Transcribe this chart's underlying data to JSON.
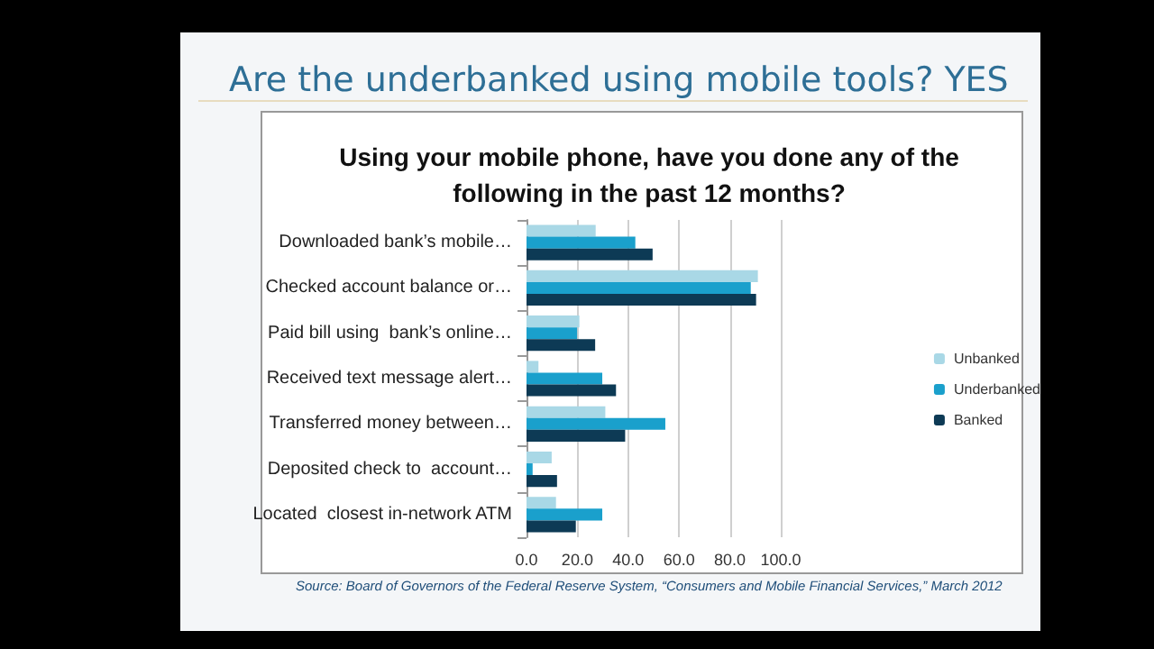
{
  "chart_data": {
    "type": "bar",
    "orientation": "horizontal",
    "title": "Are the underbanked using mobile tools? YES",
    "subtitle": "Using your mobile phone, have you done any of the\nfollowing in the past 12 months?",
    "categories": [
      "Downloaded bank’s mobile…",
      "Checked account balance or…",
      "Paid bill using  bank’s online…",
      "Received text message alert…",
      "Transferred money between…",
      "Deposited check to  account…",
      "Located  closest in-network ATM"
    ],
    "series": [
      {
        "name": "Unbanked",
        "color": "#a9d8e6",
        "values": [
          27.2,
          91,
          20.8,
          4.7,
          31,
          9.9,
          11.6
        ]
      },
      {
        "name": "Underbanked",
        "color": "#1aa0cc",
        "values": [
          42.8,
          88.2,
          19.9,
          29.8,
          54.6,
          2.4,
          29.8
        ]
      },
      {
        "name": "Banked",
        "color": "#0d3a55",
        "values": [
          49.6,
          90.3,
          27,
          35.2,
          38.8,
          12,
          19.4
        ]
      }
    ],
    "xlim": [
      0,
      100
    ],
    "xticks": [
      {
        "value": 0,
        "label": "0.0"
      },
      {
        "value": 20,
        "label": "20.0"
      },
      {
        "value": 40,
        "label": "40.0"
      },
      {
        "value": 60,
        "label": "60.0"
      },
      {
        "value": 80,
        "label": "80.0"
      },
      {
        "value": 100,
        "label": "100.0"
      }
    ],
    "grid": "x",
    "legend": "right",
    "annotations": [
      "Source: Board of Governors of the Federal Reserve System, “Consumers and Mobile Financial Services,” March 2012"
    ]
  }
}
